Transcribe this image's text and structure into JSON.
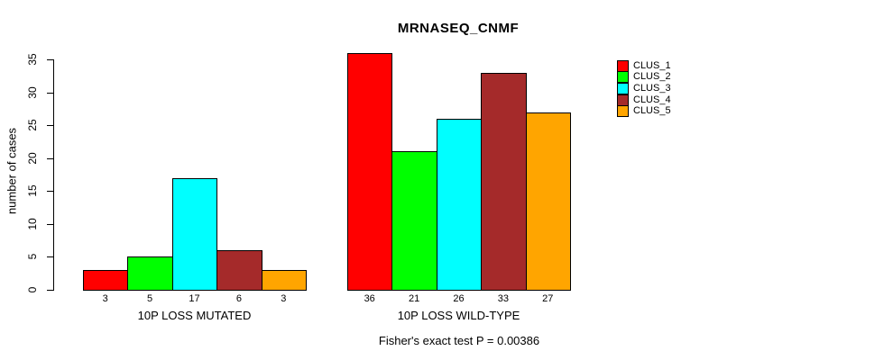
{
  "chart_data": {
    "type": "bar",
    "title": "MRNASEQ_CNMF",
    "subtitle": "Fisher's exact test P = 0.00386",
    "ylabel": "number of cases",
    "ylim": [
      0,
      35
    ],
    "yticks": [
      0,
      5,
      10,
      15,
      20,
      25,
      30,
      35
    ],
    "categories": [
      "10P LOSS MUTATED",
      "10P LOSS WILD-TYPE"
    ],
    "series": [
      {
        "name": "CLUS_1",
        "color": "#FF0000",
        "values": [
          3,
          36
        ]
      },
      {
        "name": "CLUS_2",
        "color": "#00FF00",
        "values": [
          5,
          21
        ]
      },
      {
        "name": "CLUS_3",
        "color": "#00FFFF",
        "values": [
          17,
          26
        ]
      },
      {
        "name": "CLUS_4",
        "color": "#A52A2A",
        "values": [
          6,
          33
        ]
      },
      {
        "name": "CLUS_5",
        "color": "#FFA500",
        "values": [
          3,
          27
        ]
      }
    ],
    "bar_value_labels_shown": true,
    "grid": false,
    "legend_position": "right-outside"
  }
}
